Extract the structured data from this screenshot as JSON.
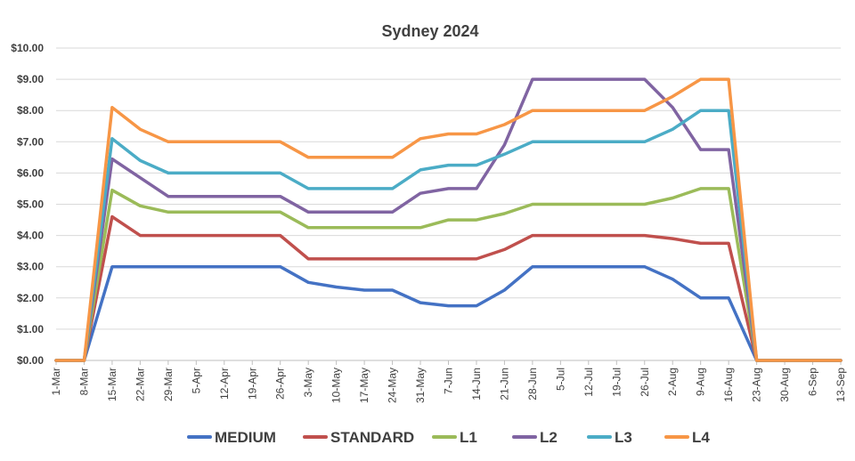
{
  "chart_data": {
    "type": "line",
    "title": "Sydney 2024",
    "xlabel": "",
    "ylabel": "",
    "ylim": [
      0,
      10
    ],
    "y_ticks": [
      "$0.00",
      "$1.00",
      "$2.00",
      "$3.00",
      "$4.00",
      "$5.00",
      "$6.00",
      "$7.00",
      "$8.00",
      "$9.00",
      "$10.00"
    ],
    "categories": [
      "1-Mar",
      "8-Mar",
      "15-Mar",
      "22-Mar",
      "29-Mar",
      "5-Apr",
      "12-Apr",
      "19-Apr",
      "26-Apr",
      "3-May",
      "10-May",
      "17-May",
      "24-May",
      "31-May",
      "7-Jun",
      "14-Jun",
      "21-Jun",
      "28-Jun",
      "5-Jul",
      "12-Jul",
      "19-Jul",
      "26-Jul",
      "2-Aug",
      "9-Aug",
      "16-Aug",
      "23-Aug",
      "30-Aug",
      "6-Sep",
      "13-Sep"
    ],
    "grid": true,
    "legend_position": "bottom",
    "series": [
      {
        "name": "MEDIUM",
        "color": "#4472C4",
        "values": [
          0,
          0,
          3.0,
          3.0,
          3.0,
          3.0,
          3.0,
          3.0,
          3.0,
          2.5,
          2.35,
          2.25,
          2.25,
          1.85,
          1.75,
          1.75,
          2.25,
          3.0,
          3.0,
          3.0,
          3.0,
          3.0,
          2.6,
          2.0,
          2.0,
          0,
          0,
          0,
          0
        ]
      },
      {
        "name": "STANDARD",
        "color": "#C0504D",
        "values": [
          0,
          0,
          4.6,
          4.0,
          4.0,
          4.0,
          4.0,
          4.0,
          4.0,
          3.25,
          3.25,
          3.25,
          3.25,
          3.25,
          3.25,
          3.25,
          3.55,
          4.0,
          4.0,
          4.0,
          4.0,
          4.0,
          3.9,
          3.75,
          3.75,
          0,
          0,
          0,
          0
        ]
      },
      {
        "name": "L1",
        "color": "#9BBB59",
        "values": [
          0,
          0,
          5.45,
          4.95,
          4.75,
          4.75,
          4.75,
          4.75,
          4.75,
          4.25,
          4.25,
          4.25,
          4.25,
          4.25,
          4.5,
          4.5,
          4.7,
          5.0,
          5.0,
          5.0,
          5.0,
          5.0,
          5.2,
          5.5,
          5.5,
          0,
          0,
          0,
          0
        ]
      },
      {
        "name": "L2",
        "color": "#8064A2",
        "values": [
          0,
          0,
          6.45,
          5.85,
          5.25,
          5.25,
          5.25,
          5.25,
          5.25,
          4.75,
          4.75,
          4.75,
          4.75,
          5.35,
          5.5,
          5.5,
          6.9,
          9.0,
          9.0,
          9.0,
          9.0,
          9.0,
          8.1,
          6.75,
          6.75,
          0,
          0,
          0,
          0
        ]
      },
      {
        "name": "L3",
        "color": "#4BACC6",
        "values": [
          0,
          0,
          7.1,
          6.4,
          6.0,
          6.0,
          6.0,
          6.0,
          6.0,
          5.5,
          5.5,
          5.5,
          5.5,
          6.1,
          6.25,
          6.25,
          6.6,
          7.0,
          7.0,
          7.0,
          7.0,
          7.0,
          7.4,
          8.0,
          8.0,
          0,
          0,
          0,
          0
        ]
      },
      {
        "name": "L4",
        "color": "#F79646",
        "values": [
          0,
          0,
          8.1,
          7.4,
          7.0,
          7.0,
          7.0,
          7.0,
          7.0,
          6.5,
          6.5,
          6.5,
          6.5,
          7.1,
          7.25,
          7.25,
          7.55,
          8.0,
          8.0,
          8.0,
          8.0,
          8.0,
          8.45,
          9.0,
          9.0,
          0,
          0,
          0,
          0
        ]
      }
    ]
  }
}
